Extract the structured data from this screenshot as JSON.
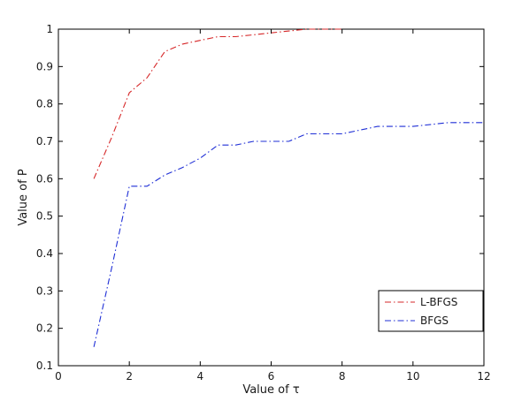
{
  "chart_data": {
    "type": "line",
    "title": "",
    "xlabel": "Value of τ",
    "ylabel": "Value of P",
    "xlim": [
      0,
      12
    ],
    "ylim": [
      0.1,
      1
    ],
    "xticks": [
      0,
      2,
      4,
      6,
      8,
      10,
      12
    ],
    "yticks": [
      0.1,
      0.2,
      0.3,
      0.4,
      0.5,
      0.6,
      0.7,
      0.8,
      0.9,
      1
    ],
    "xtick_labels": [
      "0",
      "2",
      "4",
      "6",
      "8",
      "10",
      "12"
    ],
    "ytick_labels": [
      "0.1",
      "0.2",
      "0.3",
      "0.4",
      "0.5",
      "0.6",
      "0.7",
      "0.8",
      "0.9",
      "1"
    ],
    "grid": false,
    "legend_position": "lower-right",
    "series": [
      {
        "name": "L-BFGS",
        "color": "#d62728",
        "line_style": "dash-dot",
        "x": [
          1,
          1.5,
          2,
          2.5,
          3,
          3.5,
          4,
          4.5,
          5,
          5.5,
          6,
          6.5,
          7,
          7.5,
          8
        ],
        "y": [
          0.6,
          0.71,
          0.83,
          0.87,
          0.94,
          0.96,
          0.97,
          0.98,
          0.98,
          0.985,
          0.99,
          0.995,
          1.0,
          1.0,
          1.0
        ]
      },
      {
        "name": "BFGS",
        "color": "#1f2fd6",
        "line_style": "dash-dot",
        "x": [
          1,
          1.5,
          2,
          2.5,
          3,
          3.5,
          4,
          4.5,
          5,
          5.5,
          6,
          6.5,
          7,
          7.5,
          8,
          8.5,
          9,
          9.5,
          10,
          10.5,
          11,
          11.5,
          12
        ],
        "y": [
          0.15,
          0.36,
          0.58,
          0.58,
          0.61,
          0.63,
          0.655,
          0.69,
          0.69,
          0.7,
          0.7,
          0.7,
          0.72,
          0.72,
          0.72,
          0.73,
          0.74,
          0.74,
          0.74,
          0.745,
          0.75,
          0.75,
          0.75
        ]
      }
    ]
  }
}
